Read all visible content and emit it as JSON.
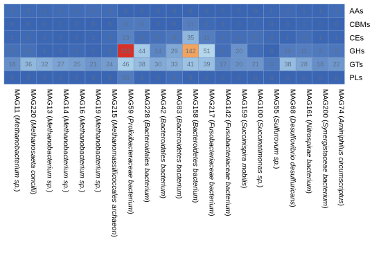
{
  "chart_data": {
    "type": "heatmap",
    "rows": [
      "AAs",
      "CBMs",
      "CEs",
      "GHs",
      "GTs",
      "PLs"
    ],
    "columns": [
      {
        "id": "MAG11",
        "taxon": "Methanobacterium sp."
      },
      {
        "id": "MAG220",
        "taxon": "Methanosaeta concilii"
      },
      {
        "id": "MAG13",
        "taxon": "Methanobacterium sp."
      },
      {
        "id": "MAG14",
        "taxon": "Methanobacterium sp."
      },
      {
        "id": "MAG16",
        "taxon": "Methanobacterium sp."
      },
      {
        "id": "MAG19",
        "taxon": "Methanobacterium sp."
      },
      {
        "id": "MAG215",
        "taxon": "Methanomassiliicoccales archaeon"
      },
      {
        "id": "MAG59",
        "taxon": "Prolixibacteraceae bacterium"
      },
      {
        "id": "MAG228",
        "taxon": "Bacteroidales bacterium"
      },
      {
        "id": "MAG42",
        "taxon": "Bacteroidales bacterium"
      },
      {
        "id": "MAG83",
        "taxon": "Bacteroidetes bacterium"
      },
      {
        "id": "MAG158",
        "taxon": "Bacteroidetes bacterium"
      },
      {
        "id": "MAG217",
        "taxon": "Fusobacteriaceae bacterium"
      },
      {
        "id": "MAG142",
        "taxon": "Fusobacteriaceae bacterium"
      },
      {
        "id": "MAG159",
        "taxon": "Succinispira mobilis"
      },
      {
        "id": "MAG100",
        "taxon": "Succinatimonas sp."
      },
      {
        "id": "MAG55",
        "taxon": "Sulfurovum sp."
      },
      {
        "id": "MAG68",
        "taxon": "Desulfovibrio desulfuricans"
      },
      {
        "id": "MAG161",
        "taxon": "Nitrospirae bacterium"
      },
      {
        "id": "MAG200",
        "taxon": "Synergistaceae bacterium"
      },
      {
        "id": "MAG74",
        "taxon": "Aminiphilus circumscriptus"
      }
    ],
    "values": [
      [
        3,
        2,
        2,
        3,
        3,
        4,
        3,
        0,
        0,
        0,
        0,
        0,
        0,
        0,
        0,
        0,
        1,
        2,
        1,
        1,
        3
      ],
      [
        0,
        0,
        0,
        0,
        0,
        0,
        0,
        9,
        9,
        0,
        0,
        11,
        2,
        1,
        0,
        1,
        0,
        0,
        1,
        0,
        0
      ],
      [
        1,
        2,
        1,
        0,
        0,
        1,
        3,
        13,
        4,
        5,
        8,
        35,
        11,
        4,
        4,
        5,
        2,
        1,
        4,
        1,
        1
      ],
      [
        5,
        5,
        1,
        1,
        2,
        1,
        2,
        151,
        44,
        14,
        29,
        142,
        51,
        4,
        20,
        3,
        0,
        10,
        11,
        9,
        8
      ],
      [
        18,
        36,
        32,
        27,
        25,
        21,
        24,
        46,
        38,
        30,
        33,
        41,
        39,
        17,
        20,
        21,
        9,
        38,
        28,
        18,
        22
      ],
      [
        0,
        0,
        0,
        0,
        0,
        0,
        0,
        10,
        1,
        0,
        3,
        0,
        0,
        0,
        0,
        0,
        0,
        0,
        0,
        0,
        0
      ]
    ],
    "colors": {
      "low": "#3a65b3",
      "mid": "#b3d8ee",
      "high_mid": "#f4a259",
      "high": "#d73027",
      "border": "#7f98c4"
    }
  }
}
